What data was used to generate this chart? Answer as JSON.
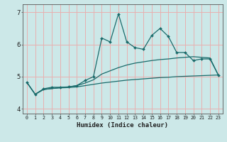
{
  "xlabel": "Humidex (Indice chaleur)",
  "background_color": "#cce8e8",
  "grid_color": "#e8b0b0",
  "line_color": "#1a6b6b",
  "xlim": [
    -0.5,
    23.5
  ],
  "ylim": [
    3.85,
    7.25
  ],
  "yticks": [
    4,
    5,
    6,
    7
  ],
  "xticks": [
    0,
    1,
    2,
    3,
    4,
    5,
    6,
    7,
    8,
    9,
    10,
    11,
    12,
    13,
    14,
    15,
    16,
    17,
    18,
    19,
    20,
    21,
    22,
    23
  ],
  "main_x": [
    0,
    1,
    2,
    3,
    4,
    5,
    6,
    7,
    8,
    9,
    10,
    11,
    12,
    13,
    14,
    15,
    16,
    17,
    18,
    19,
    20,
    21,
    22,
    23
  ],
  "main_y": [
    4.82,
    4.45,
    4.62,
    4.67,
    4.67,
    4.68,
    4.72,
    4.88,
    5.0,
    6.2,
    6.08,
    6.95,
    6.08,
    5.9,
    5.85,
    6.28,
    6.5,
    6.25,
    5.75,
    5.75,
    5.5,
    5.55,
    5.55,
    5.05
  ],
  "line2_x": [
    0,
    1,
    2,
    3,
    4,
    5,
    6,
    7,
    8,
    9,
    10,
    11,
    12,
    13,
    14,
    15,
    16,
    17,
    18,
    19,
    20,
    21,
    22,
    23
  ],
  "line2_y": [
    4.82,
    4.45,
    4.6,
    4.63,
    4.65,
    4.66,
    4.68,
    4.72,
    4.76,
    4.8,
    4.83,
    4.86,
    4.89,
    4.91,
    4.93,
    4.95,
    4.97,
    4.98,
    5.0,
    5.01,
    5.02,
    5.03,
    5.04,
    5.05
  ],
  "line3_x": [
    0,
    1,
    2,
    3,
    4,
    5,
    6,
    7,
    8,
    9,
    10,
    11,
    12,
    13,
    14,
    15,
    16,
    17,
    18,
    19,
    20,
    21,
    22,
    23
  ],
  "line3_y": [
    4.82,
    4.45,
    4.6,
    4.63,
    4.66,
    4.68,
    4.72,
    4.8,
    4.9,
    5.08,
    5.18,
    5.28,
    5.36,
    5.42,
    5.46,
    5.5,
    5.53,
    5.55,
    5.58,
    5.6,
    5.62,
    5.6,
    5.58,
    5.05
  ]
}
